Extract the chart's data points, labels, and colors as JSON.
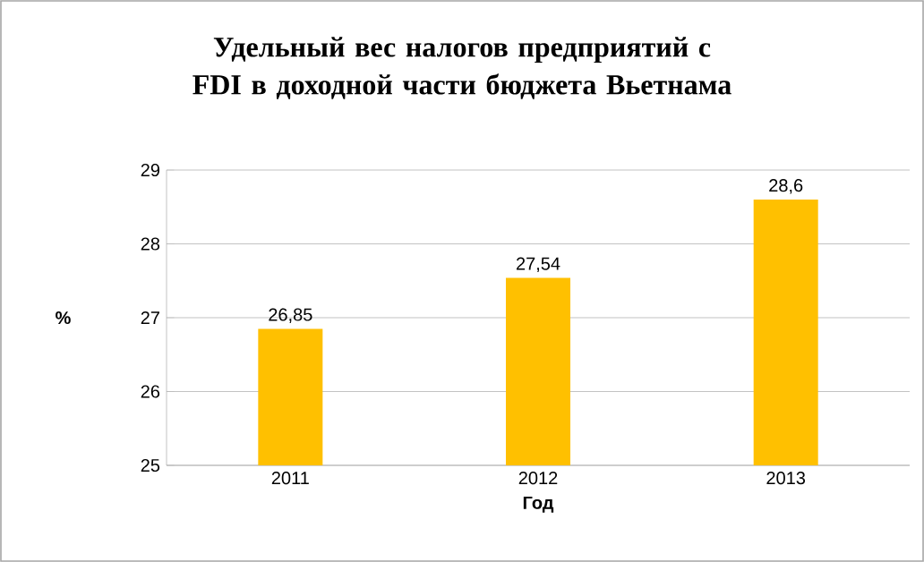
{
  "chart_data": {
    "type": "bar",
    "title": "Удельный вес налогов предприятий с FDI в доходной части бюджета Вьетнама",
    "xlabel": "Год",
    "ylabel": "%",
    "categories": [
      "2011",
      "2012",
      "2013"
    ],
    "values": [
      26.85,
      27.54,
      28.6
    ],
    "value_labels": [
      "26,85",
      "27,54",
      "28,6"
    ],
    "color": "#ffc000",
    "ylim": [
      25,
      29
    ],
    "yticks": [
      25,
      26,
      27,
      28,
      29
    ],
    "grid": "y"
  }
}
